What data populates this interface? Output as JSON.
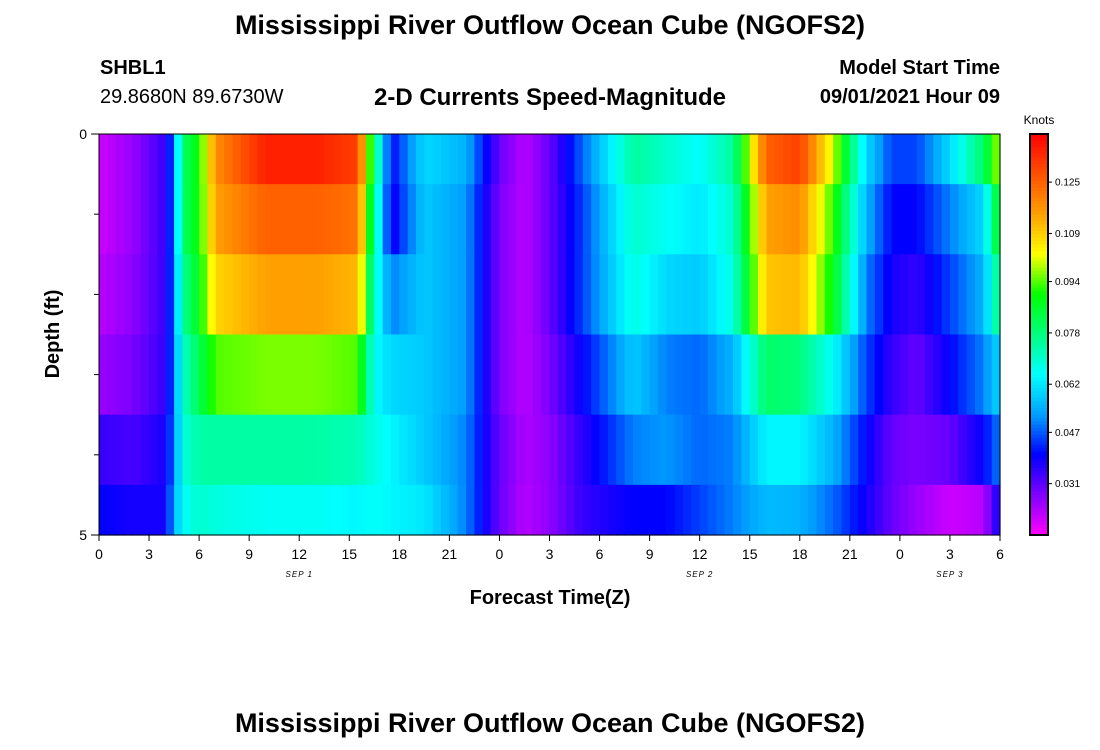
{
  "page": {
    "title_top": "Mississippi River Outflow Ocean Cube (NGOFS2)",
    "title_bottom": "Mississippi River Outflow Ocean Cube (NGOFS2)",
    "station_id": "SHBL1",
    "station_coords": "29.8680N  89.6730W",
    "subtitle": "2-D Currents Speed-Magnitude",
    "model_start_label": "Model Start Time",
    "model_start_value": "09/01/2021 Hour 09"
  },
  "chart_data": {
    "type": "heatmap",
    "title": "2-D Currents Speed-Magnitude",
    "xlabel": "Forecast Time(Z)",
    "ylabel": "Depth (ft)",
    "x_hours": [
      0,
      54
    ],
    "x_tick_labels": [
      "0",
      "3",
      "6",
      "9",
      "12",
      "15",
      "18",
      "21",
      "0",
      "3",
      "6",
      "9",
      "12",
      "15",
      "18",
      "21",
      "0",
      "3",
      "6"
    ],
    "day_labels": [
      {
        "text": "SEP 1",
        "hour": 12
      },
      {
        "text": "SEP 2",
        "hour": 36
      },
      {
        "text": "SEP 3",
        "hour": 51
      }
    ],
    "y_range": [
      0,
      5
    ],
    "y_tick_labels": [
      {
        "value": 0,
        "text": "0"
      },
      {
        "value": 5,
        "text": "5"
      }
    ],
    "y_minor_ticks": [
      1,
      2,
      3,
      4
    ],
    "depth_layers": [
      0.25,
      1,
      2,
      3,
      4,
      4.75
    ],
    "colorbar": {
      "unit": "Knots",
      "vmin": 0.015,
      "vmax": 0.14,
      "ticks": [
        0.031,
        0.047,
        0.062,
        0.078,
        0.094,
        0.109,
        0.125
      ],
      "colors": [
        "#ff00ff",
        "#8000ff",
        "#0000ff",
        "#00a0ff",
        "#00ffff",
        "#00ff80",
        "#00ff00",
        "#ffff00",
        "#ffa000",
        "#ff5000",
        "#ff0000"
      ]
    },
    "keyframes": {
      "hours": [
        0,
        2,
        4,
        4.5,
        5,
        6,
        7,
        10,
        13,
        15.5,
        16.5,
        17.5,
        19.5,
        22,
        24,
        25.5,
        27,
        29,
        32,
        34,
        36,
        38,
        40,
        42,
        44,
        46,
        47.5,
        49,
        51,
        53,
        54
      ],
      "layers": [
        [
          0.02,
          0.025,
          0.035,
          0.05,
          0.08,
          0.09,
          0.118,
          0.135,
          0.135,
          0.13,
          0.08,
          0.04,
          0.06,
          0.055,
          0.03,
          0.022,
          0.03,
          0.048,
          0.075,
          0.07,
          0.065,
          0.075,
          0.125,
          0.13,
          0.1,
          0.06,
          0.045,
          0.045,
          0.06,
          0.08,
          0.1
        ],
        [
          0.02,
          0.025,
          0.035,
          0.05,
          0.08,
          0.09,
          0.115,
          0.125,
          0.125,
          0.122,
          0.075,
          0.038,
          0.058,
          0.052,
          0.028,
          0.022,
          0.03,
          0.045,
          0.07,
          0.066,
          0.062,
          0.07,
          0.115,
          0.118,
          0.092,
          0.055,
          0.04,
          0.04,
          0.05,
          0.06,
          0.09
        ],
        [
          0.022,
          0.026,
          0.035,
          0.05,
          0.075,
          0.088,
          0.108,
          0.115,
          0.115,
          0.112,
          0.07,
          0.05,
          0.058,
          0.052,
          0.028,
          0.022,
          0.03,
          0.045,
          0.068,
          0.06,
          0.058,
          0.068,
          0.11,
          0.112,
          0.088,
          0.05,
          0.038,
          0.035,
          0.045,
          0.055,
          0.08
        ],
        [
          0.025,
          0.028,
          0.035,
          0.05,
          0.07,
          0.082,
          0.094,
          0.096,
          0.096,
          0.094,
          0.065,
          0.06,
          0.058,
          0.052,
          0.028,
          0.022,
          0.028,
          0.04,
          0.058,
          0.05,
          0.048,
          0.055,
          0.08,
          0.078,
          0.065,
          0.045,
          0.035,
          0.03,
          0.04,
          0.05,
          0.06
        ],
        [
          0.035,
          0.033,
          0.038,
          0.05,
          0.068,
          0.074,
          0.074,
          0.074,
          0.074,
          0.072,
          0.068,
          0.064,
          0.058,
          0.05,
          0.03,
          0.023,
          0.026,
          0.036,
          0.05,
          0.052,
          0.048,
          0.05,
          0.064,
          0.064,
          0.055,
          0.04,
          0.03,
          0.028,
          0.03,
          0.04,
          0.05
        ],
        [
          0.04,
          0.038,
          0.038,
          0.055,
          0.065,
          0.07,
          0.068,
          0.066,
          0.066,
          0.064,
          0.066,
          0.064,
          0.062,
          0.05,
          0.03,
          0.022,
          0.026,
          0.035,
          0.04,
          0.04,
          0.045,
          0.05,
          0.056,
          0.055,
          0.048,
          0.038,
          0.03,
          0.025,
          0.02,
          0.022,
          0.04
        ]
      ]
    }
  }
}
